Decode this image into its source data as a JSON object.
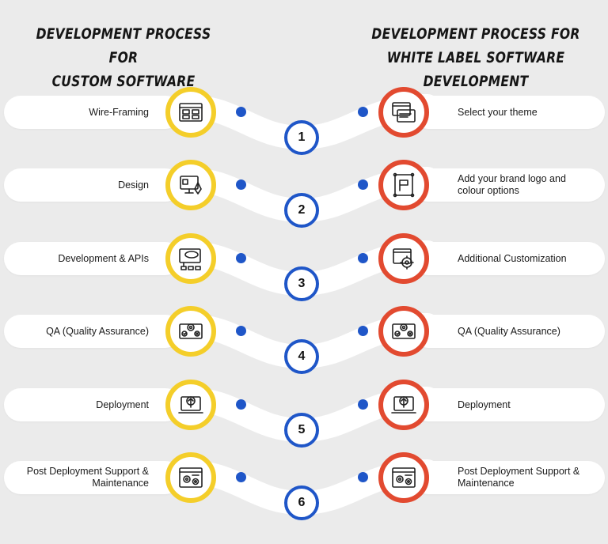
{
  "titles": {
    "left_line1": "DEVELOPMENT PROCESS FOR",
    "left_line2": "CUSTOM SOFTWARE",
    "right_line1": "DEVELOPMENT PROCESS FOR",
    "right_line2": "WHITE LABEL SOFTWARE DEVELOPMENT"
  },
  "colors": {
    "left_ring": "#f4ce2a",
    "right_ring": "#e24a30",
    "accent_blue": "#1f56c8"
  },
  "steps": [
    {
      "number": "1",
      "left": "Wire-Framing",
      "right": "Select your theme",
      "left_icon": "wireframe-icon",
      "right_icon": "theme-select-icon"
    },
    {
      "number": "2",
      "left": "Design",
      "right": "Add your brand logo and colour options",
      "left_icon": "design-icon",
      "right_icon": "brand-logo-icon"
    },
    {
      "number": "3",
      "left": "Development & APIs",
      "right": "Additional Customization",
      "left_icon": "api-development-icon",
      "right_icon": "customization-icon"
    },
    {
      "number": "4",
      "left": "QA (Quality Assurance)",
      "right": "QA (Quality Assurance)",
      "left_icon": "quality-assurance-icon",
      "right_icon": "quality-assurance-icon"
    },
    {
      "number": "5",
      "left": "Deployment",
      "right": "Deployment",
      "left_icon": "deployment-icon",
      "right_icon": "deployment-icon"
    },
    {
      "number": "6",
      "left": "Post Deployment Support & Maintenance",
      "right": "Post Deployment Support & Maintenance",
      "left_icon": "maintenance-icon",
      "right_icon": "maintenance-icon"
    }
  ]
}
